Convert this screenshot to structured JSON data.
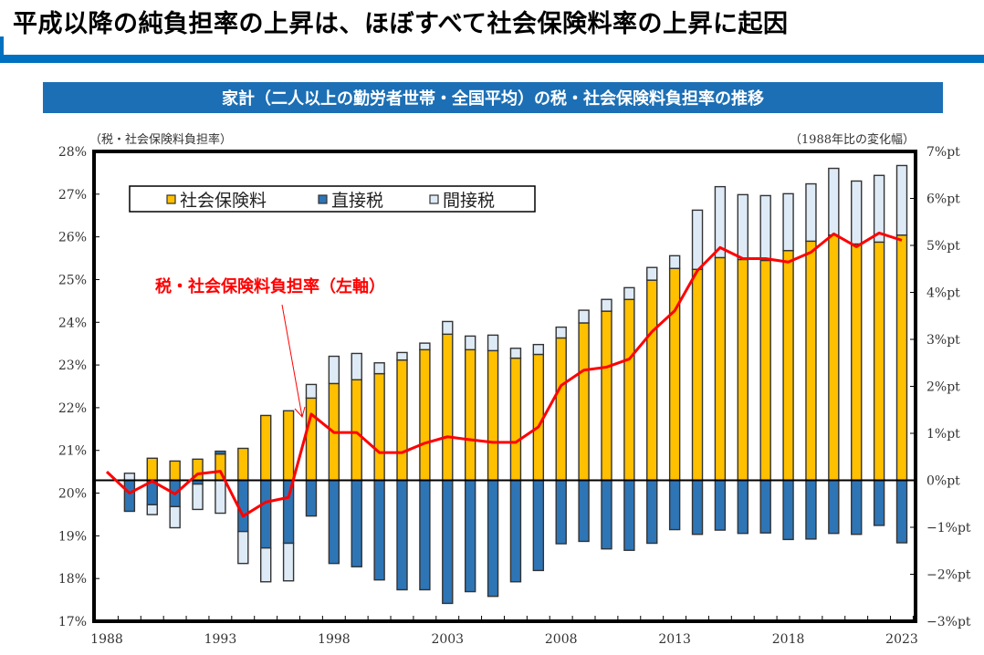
{
  "header": {
    "title": "平成以降の純負担率の上昇は、ほぼすべて社会保険料率の上昇に起因",
    "accent_color": "#0070c0"
  },
  "banner": {
    "title": "家計（二人以上の勤労者世帯・全国平均）の税・社会保険料負担率の推移",
    "color": "#1c6fb5"
  },
  "chart_data": {
    "type": "bar",
    "subtype": "stacked bar + line (dual axis)",
    "title": "家計（二人以上の勤労者世帯・全国平均）の税・社会保険料負担率の推移",
    "left_axis_label": "（税・社会保険料負担率）",
    "right_axis_label": "（1988年比の変化幅）",
    "ylim_left": [
      17,
      28
    ],
    "yticks_left": [
      "28%",
      "27%",
      "26%",
      "25%",
      "24%",
      "23%",
      "22%",
      "21%",
      "20%",
      "19%",
      "18%",
      "17%"
    ],
    "ylim_right": [
      -3,
      7
    ],
    "yticks_right": [
      "7%pt",
      "6%pt",
      "5%pt",
      "4%pt",
      "3%pt",
      "2%pt",
      "1%pt",
      "0%pt",
      "−1%pt",
      "−2%pt",
      "−3%pt"
    ],
    "x": [
      1988,
      1989,
      1990,
      1991,
      1992,
      1993,
      1994,
      1995,
      1996,
      1997,
      1998,
      1999,
      2000,
      2001,
      2002,
      2003,
      2004,
      2005,
      2006,
      2007,
      2008,
      2009,
      2010,
      2011,
      2012,
      2013,
      2014,
      2015,
      2016,
      2017,
      2018,
      2019,
      2020,
      2021,
      2022,
      2023
    ],
    "xtick_labels": [
      "1988",
      "1993",
      "1998",
      "2003",
      "2008",
      "2013",
      "2018",
      "2023"
    ],
    "legend": {
      "placement": "top-left",
      "entries": [
        "社会保険料",
        "直接税",
        "間接税"
      ]
    },
    "annotation": {
      "text": "税・社会保険料負担率（左軸）",
      "color": "#ff0000"
    },
    "series": [
      {
        "name": "社会保険料",
        "axis": "right",
        "kind": "bar",
        "color": "#ffc000",
        "values": [
          0,
          0,
          0.47,
          0.41,
          0.45,
          0.56,
          0.68,
          1.38,
          1.48,
          1.75,
          2.06,
          2.14,
          2.27,
          2.56,
          2.78,
          3.11,
          2.78,
          2.76,
          2.6,
          2.68,
          3.03,
          3.35,
          3.6,
          3.85,
          4.26,
          4.51,
          4.49,
          4.74,
          4.7,
          4.68,
          4.89,
          5.09,
          5.22,
          5.03,
          5.07,
          5.22
        ]
      },
      {
        "name": "直接税",
        "axis": "right",
        "kind": "bar",
        "color": "#2e75b6",
        "values": [
          0,
          -0.66,
          -0.52,
          -0.56,
          -0.08,
          0.06,
          -1.09,
          -1.44,
          -1.34,
          -0.76,
          -1.77,
          -1.84,
          -2.12,
          -2.33,
          -2.33,
          -2.62,
          -2.37,
          -2.47,
          -2.16,
          -1.92,
          -1.35,
          -1.3,
          -1.46,
          -1.49,
          -1.34,
          -1.05,
          -1.15,
          -1.06,
          -1.13,
          -1.12,
          -1.26,
          -1.25,
          -1.13,
          -1.15,
          -0.96,
          -1.33
        ]
      },
      {
        "name": "間接税",
        "axis": "right",
        "kind": "bar",
        "color": "#deebf7",
        "values": [
          0,
          0.15,
          -0.21,
          -0.45,
          -0.54,
          -0.7,
          -0.68,
          -0.72,
          -0.8,
          0.29,
          0.58,
          0.56,
          0.23,
          0.16,
          0.14,
          0.27,
          0.29,
          0.33,
          0.21,
          0.21,
          0.23,
          0.27,
          0.25,
          0.25,
          0.27,
          0.27,
          1.26,
          1.51,
          1.38,
          1.38,
          1.21,
          1.22,
          1.42,
          1.34,
          1.42,
          1.48
        ]
      },
      {
        "name": "税・社会保険料負担率",
        "axis": "left",
        "kind": "line",
        "color": "#ff0000",
        "values": [
          20.5,
          20.0,
          20.28,
          19.98,
          20.45,
          20.51,
          19.46,
          19.79,
          19.9,
          21.85,
          21.42,
          21.42,
          20.95,
          20.95,
          21.17,
          21.32,
          21.25,
          21.19,
          21.19,
          21.55,
          22.52,
          22.88,
          22.95,
          23.14,
          23.78,
          24.27,
          25.21,
          25.75,
          25.49,
          25.49,
          25.41,
          25.64,
          26.07,
          25.77,
          26.09,
          25.92
        ]
      }
    ]
  }
}
